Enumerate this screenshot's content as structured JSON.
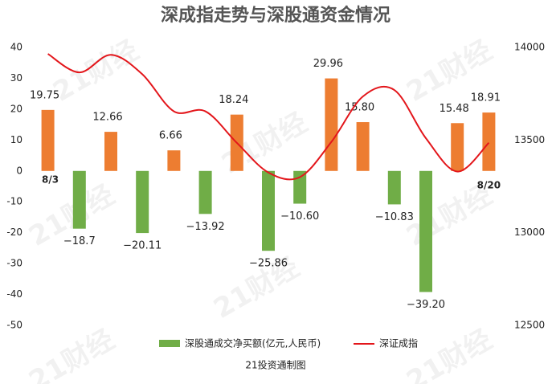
{
  "chart_data": {
    "type": "bar-line",
    "title": "深成指走势与深股通资金情况",
    "categories": [
      "8/3",
      null,
      null,
      null,
      null,
      null,
      null,
      null,
      null,
      null,
      null,
      null,
      null,
      null,
      "8/20"
    ],
    "series": [
      {
        "name": "深股通成交净买额(亿元,人民币)",
        "type": "bar",
        "color": "#70ad47",
        "positive_color": "#ed7d31",
        "values": [
          19.75,
          -18.7,
          12.66,
          -20.11,
          6.66,
          -13.92,
          18.24,
          -25.86,
          -10.6,
          29.96,
          15.8,
          -10.83,
          -39.2,
          15.48,
          18.91
        ],
        "value_labels": [
          "19.75",
          "−18.7",
          "12.66",
          "−20.11",
          "6.66",
          "−13.92",
          "18.24",
          "−25.86",
          "−10.60",
          "29.96",
          "15.80",
          "−10.83",
          "−39.20",
          "15.48",
          "18.91"
        ]
      },
      {
        "name": "深证成指",
        "type": "line",
        "color": "#e3161b",
        "axis": "y2",
        "values": [
          13965,
          13865,
          13960,
          13855,
          13655,
          13655,
          13485,
          13325,
          13300,
          13490,
          13735,
          13770,
          13510,
          13330,
          13485
        ]
      }
    ],
    "ylim": [
      -50,
      40
    ],
    "yticks": [
      -50,
      -40,
      -30,
      -20,
      -10,
      0,
      10,
      20,
      30,
      40
    ],
    "y2lim": [
      12500,
      14000
    ],
    "y2ticks": [
      12500,
      13000,
      13500,
      14000
    ],
    "note": "21投资通制图",
    "watermark": "21财经"
  }
}
